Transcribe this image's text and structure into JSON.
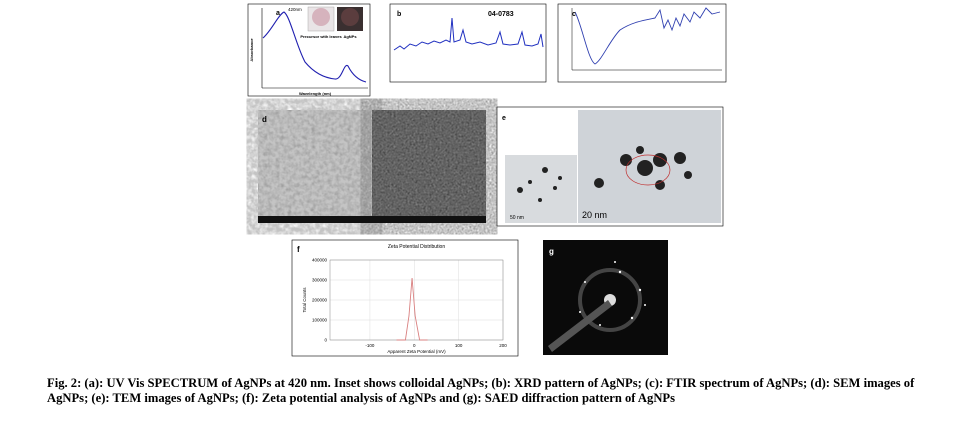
{
  "figure": {
    "panel_a": {
      "label": "a",
      "peak_label": "420nm",
      "inset_left": "Precursor with leaves",
      "inset_right": "AgNPs",
      "x_label": "Wavelength (nm)",
      "y_label": "Absorbance"
    },
    "panel_b": {
      "label": "b",
      "card": "04-0783"
    },
    "panel_c": {
      "label": "c"
    },
    "panel_d": {
      "label": "d"
    },
    "panel_e": {
      "label": "e",
      "scale_small": "50 nm",
      "scale_large": "20 nm"
    },
    "panel_f": {
      "label": "f",
      "chart_data": {
        "type": "line",
        "title": "Zeta Potential Distribution",
        "x_label": "Apparent Zeta Potential (mV)",
        "y_label": "Total Counts",
        "x": [
          -40,
          -20,
          -12,
          -5,
          2,
          12,
          30
        ],
        "values": [
          0,
          0,
          120000,
          310000,
          120000,
          0,
          0
        ],
        "color": "#d98080",
        "xlim": [
          -190,
          200
        ],
        "xticks": [
          -100,
          0,
          100,
          200
        ],
        "ylim": [
          0,
          400000
        ],
        "yticks": [
          0,
          100000,
          200000,
          300000,
          400000
        ],
        "grid": true
      }
    },
    "panel_g": {
      "label": "g"
    }
  },
  "caption": "Fig. 2: (a): UV Vis SPECTRUM of AgNPs at 420 nm. Inset shows colloidal AgNPs; (b): XRD pattern of AgNPs; (c): FTIR spectrum of AgNPs; (d): SEM images of AgNPs; (e): TEM images of AgNPs; (f): Zeta potential analysis of AgNPs and (g): SAED diffraction pattern of AgNPs"
}
